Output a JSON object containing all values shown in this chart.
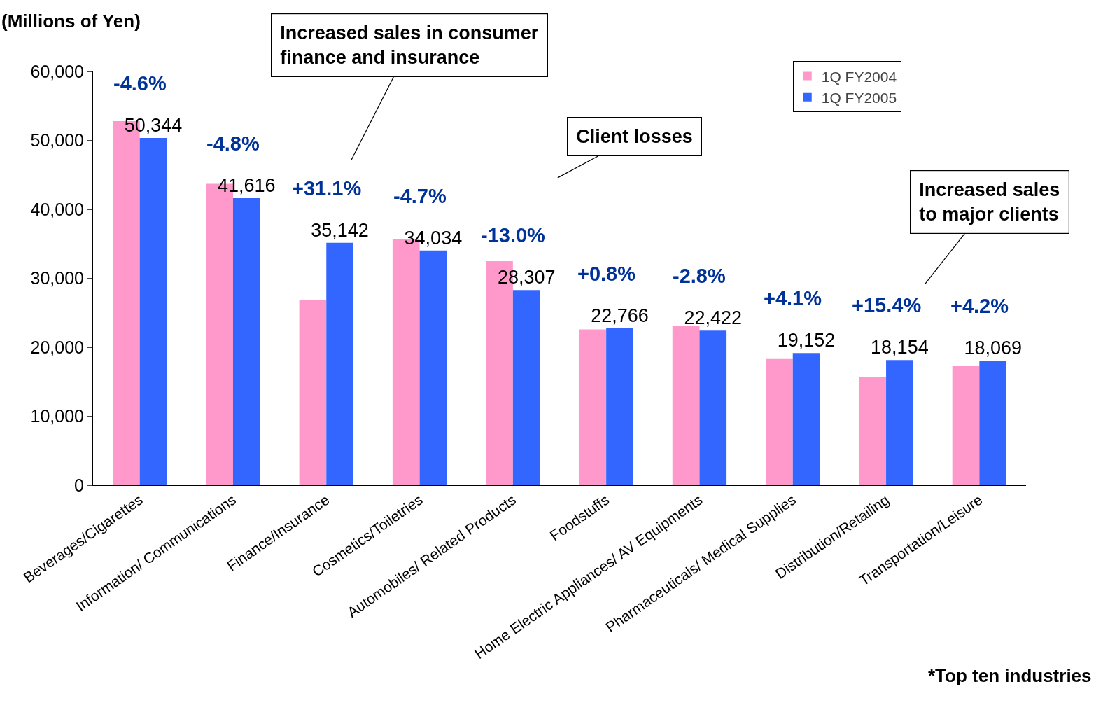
{
  "chart_data": {
    "type": "bar",
    "ylabel": "(Millions of Yen)",
    "categories": [
      "Beverages/Cigarettes",
      "Information/ Communications",
      "Finance/Insurance",
      "Cosmetics/Toiletries",
      "Automobiles/ Related Products",
      "Foodstuffs",
      "Home Electric Appliances/ AV Equipments",
      "Pharmaceuticals/ Medical Supplies",
      "Distribution/Retailing",
      "Transportation/Leisure"
    ],
    "series": [
      {
        "name": "1Q FY2004",
        "color": "#ff99cc",
        "values": [
          52800,
          43700,
          26800,
          35700,
          32500,
          22600,
          23100,
          18400,
          15700,
          17300
        ]
      },
      {
        "name": "1Q FY2005",
        "color": "#3366ff",
        "values": [
          50344,
          41616,
          35142,
          34034,
          28307,
          22766,
          22422,
          19152,
          18154,
          18069
        ],
        "value_labels": [
          "50,344",
          "41,616",
          "35,142",
          "34,034",
          "28,307",
          "22,766",
          "22,422",
          "19,152",
          "18,154",
          "18,069"
        ]
      }
    ],
    "ylim": [
      0,
      60000
    ],
    "yticks": [
      0,
      {
        "value": 10000,
        "label": "10,000"
      },
      {
        "value": 20000,
        "label": "20,000"
      },
      {
        "value": 30000,
        "label": "30,000"
      },
      {
        "value": 40000,
        "label": "40,000"
      },
      {
        "value": 50000,
        "label": "50,000"
      },
      {
        "value": 60000,
        "label": "60,000"
      }
    ],
    "grid": false,
    "legend": "top right",
    "annotations": [
      {
        "text": "-4.6%",
        "x": "Beverages/Cigarettes",
        "y": 50344
      },
      {
        "text": "-4.8%",
        "x": "Information/ Communications",
        "y": 41616
      },
      {
        "text": "+31.1%",
        "x": "Finance/Insurance",
        "y": 35142
      },
      {
        "text": "-4.7%",
        "x": "Cosmetics/Toiletries",
        "y": 34034
      },
      {
        "text": "-13.0%",
        "x": "Automobiles/ Related Products",
        "y": 28307
      },
      {
        "text": "+0.8%",
        "x": "Foodstuffs",
        "y": 22766
      },
      {
        "text": "-2.8%",
        "x": "Home Electric Appliances/ AV Equipments",
        "y": 22422
      },
      {
        "text": "+4.1%",
        "x": "Pharmaceuticals/ Medical Supplies",
        "y": 19152
      },
      {
        "text": "+15.4%",
        "x": "Distribution/Retailing",
        "y": 18154
      },
      {
        "text": "+4.2%",
        "x": "Transportation/Leisure",
        "y": 18069
      },
      "Increased sales in consumer\nfinance and insurance",
      "Client losses",
      "Increased sales\nto major clients",
      "*Top ten industries"
    ]
  }
}
